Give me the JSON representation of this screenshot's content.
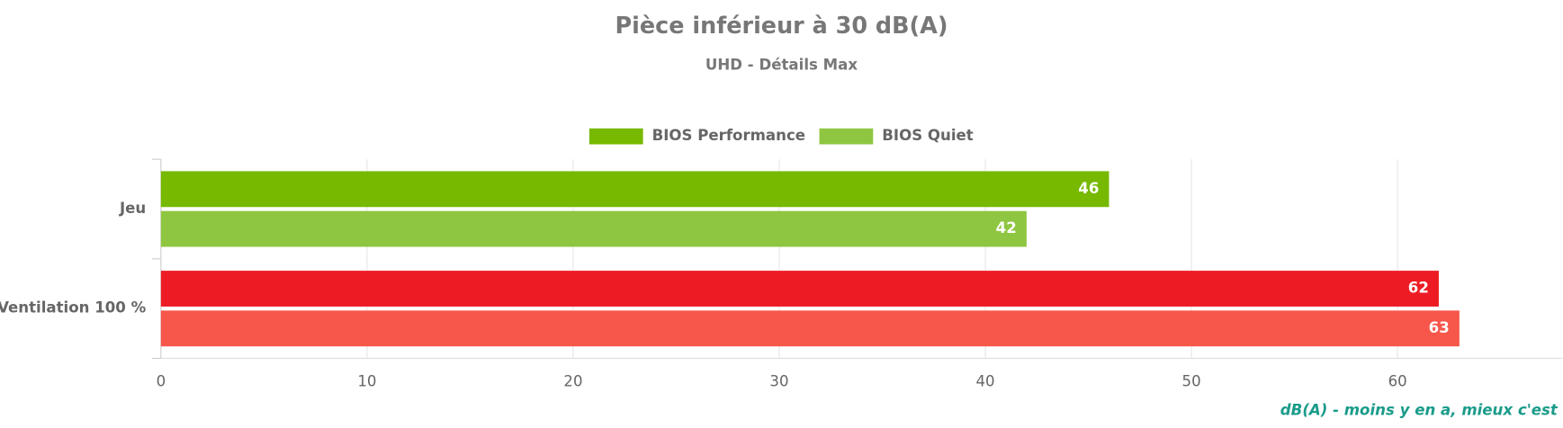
{
  "chart_data": {
    "type": "bar",
    "orientation": "horizontal",
    "title": "Pièce inférieur à 30 dB(A)",
    "subtitle": "UHD - Détails Max",
    "categories": [
      "Jeu",
      "Ventilation 100 %"
    ],
    "series": [
      {
        "name": "BIOS Performance",
        "color": "#76b900",
        "point_colors": [
          "#76b900",
          "#ed1c24"
        ],
        "values": [
          46,
          62
        ]
      },
      {
        "name": "BIOS Quiet",
        "color": "#8fc641",
        "point_colors": [
          "#8fc641",
          "#f7564a"
        ],
        "values": [
          42,
          63
        ]
      }
    ],
    "xlabel": "dB(A) - moins y en a, mieux c'est",
    "xlim": [
      0,
      68
    ],
    "xticks": [
      0,
      10,
      20,
      30,
      40,
      50,
      60
    ],
    "grid": true,
    "legend": "top"
  }
}
